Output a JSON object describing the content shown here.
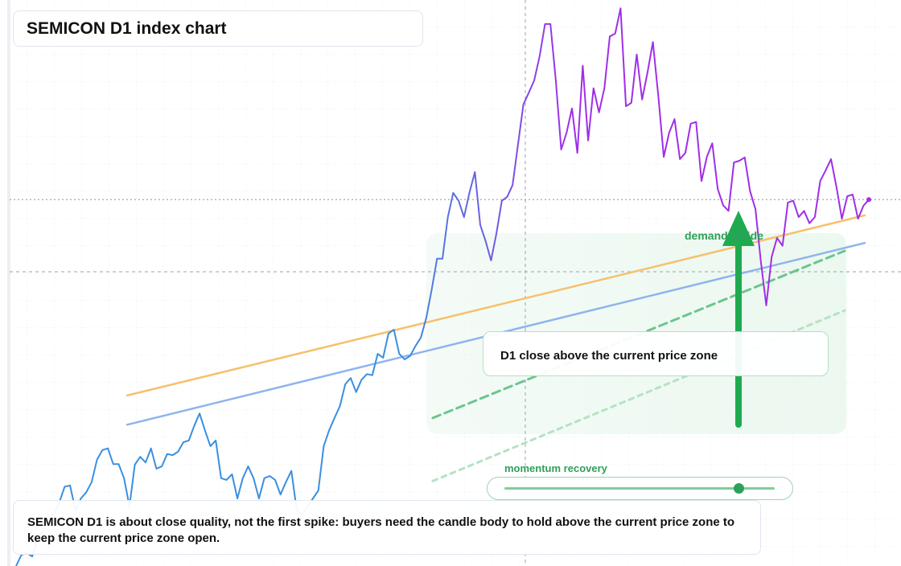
{
  "chart_data": {
    "type": "line",
    "title": "SEMICON D1 index chart",
    "ylim": [
      0,
      100
    ],
    "series": [
      {
        "colors": [
          "#3a8fe0",
          "#a02ee8"
        ],
        "values": [
          0,
          2,
          2.3,
          1.7,
          4.9,
          6.3,
          9.1,
          9.1,
          11.3,
          14.1,
          14.3,
          9.9,
          12,
          13.1,
          14.9,
          18.9,
          20.6,
          20.9,
          18.1,
          18.1,
          15.6,
          10.6,
          18,
          19.4,
          18.4,
          20.9,
          17.3,
          17.7,
          19.9,
          19.7,
          20.3,
          22,
          22.3,
          24.9,
          27.1,
          24.1,
          21.3,
          22.3,
          15.6,
          15.3,
          16.3,
          12,
          15.6,
          17.7,
          15.6,
          12,
          15.6,
          16,
          15.3,
          12.7,
          14.9,
          16.9,
          9.9,
          9.1,
          10.6,
          12,
          13.4,
          21.3,
          24.1,
          26.3,
          28.4,
          32.3,
          33.4,
          30.9,
          33.1,
          34.1,
          33.9,
          37.7,
          37,
          41.3,
          42,
          37.7,
          36.7,
          37.3,
          39.1,
          40.6,
          44.1,
          49.1,
          54.6,
          54.6,
          62,
          66.3,
          64.9,
          62,
          66.3,
          70,
          60.6,
          57.7,
          54.3,
          59.1,
          64.9,
          65.6,
          67.7,
          74.9,
          82,
          84.1,
          86.3,
          90.6,
          96.3,
          96.3,
          86.3,
          74,
          77,
          81.3,
          73.4,
          88.9,
          75.6,
          84.9,
          80.6,
          84.9,
          94.1,
          94.6,
          99.1,
          81.7,
          82.3,
          90.9,
          82.9,
          87.7,
          93.1,
          83.4,
          72.7,
          77,
          79.4,
          72.3,
          73.4,
          78.6,
          78.9,
          68.4,
          72.7,
          75.1,
          67,
          64.1,
          63.1,
          71.7,
          72,
          72.6,
          66.6,
          63.4,
          54.1,
          46.3,
          54.9,
          58.3,
          56.9,
          64.6,
          64.9,
          62,
          63.1,
          60.9,
          62,
          68.4,
          70.3,
          72.3,
          67.4,
          61.7,
          65.7,
          66,
          61.7,
          64,
          65.1
        ]
      }
    ],
    "reference_lines": [
      {
        "color": "#f5c16c",
        "start": 30.3,
        "end": 62.3
      },
      {
        "color": "#8fb4ec",
        "start": 25.1,
        "end": 57.4
      },
      {
        "color": "#6cc58e",
        "start": 26.3,
        "end": 56,
        "dash": "10 6"
      },
      {
        "color": "#b6e2c4",
        "start": 15.1,
        "end": 45.4,
        "dash": "6 6"
      }
    ],
    "zone_label": "demand divide",
    "callout": "D1 close above the current price zone",
    "slider_label": "momentum recovery",
    "caption": "SEMICON D1 is about close quality, not the first spike: buyers need the candle body to hold above the current price zone to keep the current price zone open."
  }
}
